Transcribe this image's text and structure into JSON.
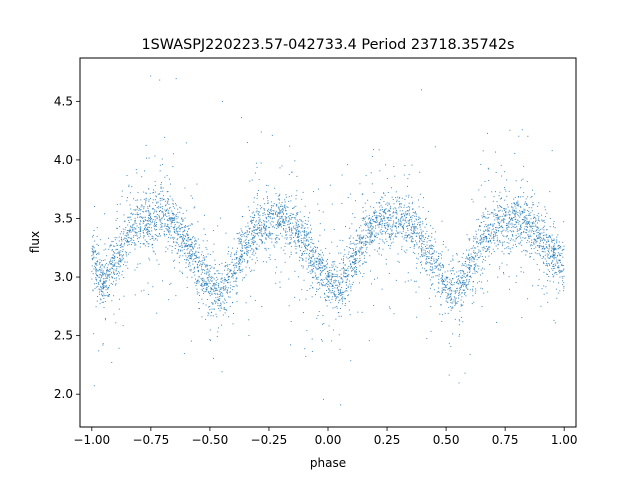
{
  "chart_data": {
    "type": "scatter",
    "title": "1SWASPJ220223.57-042733.4 Period 23718.35742s",
    "xlabel": "phase",
    "ylabel": "flux",
    "xlim": [
      -1.05,
      1.05
    ],
    "ylim": [
      1.72,
      4.87
    ],
    "xticks": [
      -1.0,
      -0.75,
      -0.5,
      -0.25,
      0.0,
      0.25,
      0.5,
      0.75,
      1.0
    ],
    "xtick_labels": [
      "−1.00",
      "−0.75",
      "−0.50",
      "−0.25",
      "0.00",
      "0.25",
      "0.50",
      "0.75",
      "1.00"
    ],
    "yticks": [
      2.0,
      2.5,
      3.0,
      3.5,
      4.0,
      4.5
    ],
    "ytick_labels": [
      "2.0",
      "2.5",
      "3.0",
      "3.5",
      "4.0",
      "4.5"
    ],
    "grid": false,
    "marker_color": "#1f77b4",
    "series": [
      {
        "phase": [
          -1.0,
          -0.95,
          -0.9,
          -0.85,
          -0.8,
          -0.75,
          -0.7,
          -0.65,
          -0.6,
          -0.55,
          -0.5,
          -0.45,
          -0.4,
          -0.35,
          -0.3,
          -0.25,
          -0.2,
          -0.15,
          -0.1,
          -0.05,
          0.0,
          0.05,
          0.1,
          0.15,
          0.2,
          0.25,
          0.3,
          0.35,
          0.4,
          0.45,
          0.5,
          0.55,
          0.6,
          0.65,
          0.7,
          0.75,
          0.8,
          0.85,
          0.9,
          0.95,
          1.0
        ],
        "flux_center": [
          3.15,
          2.95,
          3.15,
          3.35,
          3.45,
          3.5,
          3.55,
          3.45,
          3.3,
          3.1,
          2.9,
          2.85,
          3.05,
          3.3,
          3.4,
          3.45,
          3.5,
          3.45,
          3.3,
          3.1,
          2.95,
          2.9,
          3.1,
          3.3,
          3.45,
          3.5,
          3.5,
          3.45,
          3.3,
          3.1,
          2.9,
          2.85,
          3.05,
          3.3,
          3.4,
          3.45,
          3.5,
          3.45,
          3.35,
          3.2,
          3.1
        ]
      }
    ]
  }
}
